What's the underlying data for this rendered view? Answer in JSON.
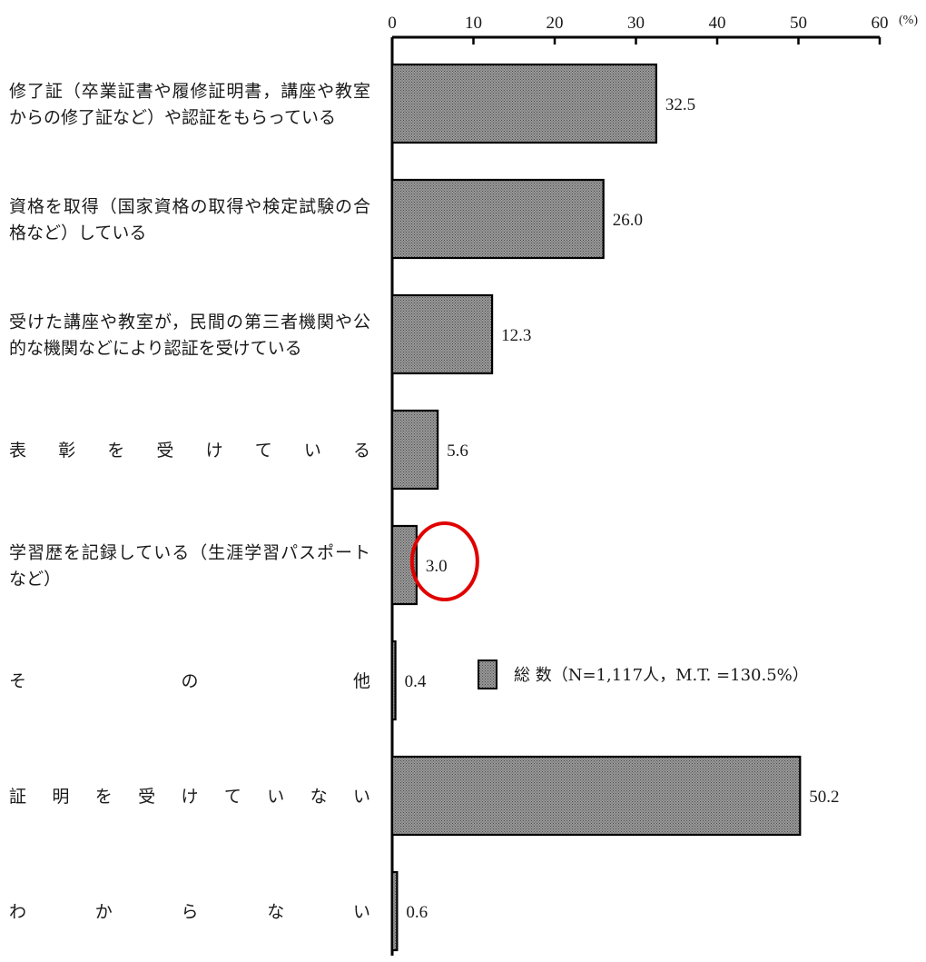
{
  "chart_data": {
    "type": "bar",
    "orientation": "horizontal",
    "axis_position": "top",
    "unit": "(%)",
    "xlim": [
      0,
      60
    ],
    "ticks": [
      0,
      10,
      20,
      30,
      40,
      50,
      60
    ],
    "categories": [
      [
        "修了証（卒業証書や履修証明書，講座や教室",
        "からの修了証など）や認証をもらっている"
      ],
      [
        "資格を取得（国家資格の取得や検定試験の合",
        "格など）している"
      ],
      [
        "受けた講座や教室が，民間の第三者機関や公",
        "的な機関などにより認証を受けている"
      ],
      [
        "表　彰　を　受　け　て　い　る"
      ],
      [
        "学習歴を記録している（生涯学習パスポート",
        "など）"
      ],
      [
        "そ　　　　　の　　　　　他"
      ],
      [
        "証　明　を　受　け　て　い　な　い"
      ],
      [
        "わ　　　か　　　ら　　　な　　　い"
      ]
    ],
    "series": [
      {
        "name": "総 数（N=1,117人，M.T. =130.5%）",
        "values": [
          32.5,
          26.0,
          12.3,
          5.6,
          3.0,
          0.4,
          50.2,
          0.6
        ],
        "labels": [
          "32.5",
          "26.0",
          "12.3",
          "5.6",
          "3.0",
          "0.4",
          "50.2",
          "0.6"
        ]
      }
    ],
    "legend_position": "right-middle",
    "grid": false,
    "highlight_index": 4,
    "colors": {
      "bar_fill": "#8c8c8c",
      "bar_stroke": "#000000",
      "highlight": "#e00000",
      "axis": "#000000"
    }
  }
}
